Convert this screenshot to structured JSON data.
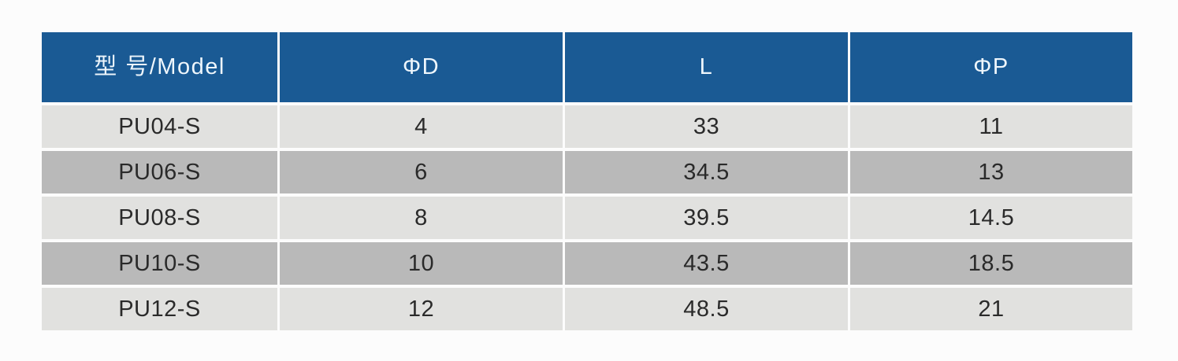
{
  "table": {
    "columns": [
      "型 号/Model",
      "ΦD",
      "L",
      "ΦP"
    ],
    "rows": [
      [
        "PU04-S",
        "4",
        "33",
        "11"
      ],
      [
        "PU06-S",
        "6",
        "34.5",
        "13"
      ],
      [
        "PU08-S",
        "8",
        "39.5",
        "14.5"
      ],
      [
        "PU10-S",
        "10",
        "43.5",
        "18.5"
      ],
      [
        "PU12-S",
        "12",
        "48.5",
        "21"
      ]
    ]
  },
  "colors": {
    "header_bg": "#1a5a94",
    "header_text": "#eef6fc",
    "row_light_bg": "#e1e1df",
    "row_dark_bg": "#b9b9b9",
    "body_text": "#2a2a2a",
    "page_bg": "#fcfcfc",
    "divider": "#fcfcfc"
  }
}
